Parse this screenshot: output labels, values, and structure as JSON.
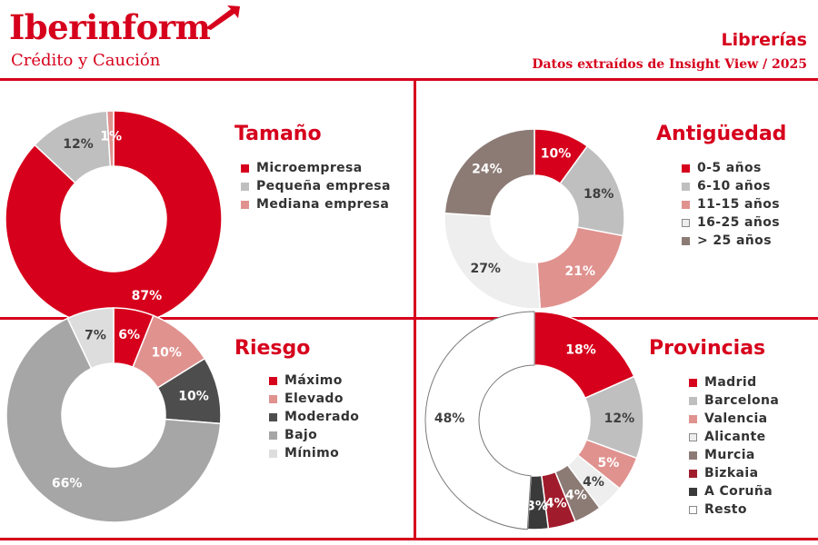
{
  "header": {
    "brand": "Iberinform",
    "brand_sub": "Crédito y Caución",
    "title": "Librerías",
    "subtitle": "Datos extraídos de Insight View / 2025"
  },
  "colors": {
    "brand_red": "#d6001c",
    "rule_red": "#c8102e",
    "label_dark": "#333333"
  },
  "chart_data": [
    {
      "type": "pie",
      "title": "Tamaño",
      "donut": true,
      "legend_position": "right",
      "slices": [
        {
          "label": "Microempresa",
          "value": 87,
          "display": "87%",
          "color": "#d6001c"
        },
        {
          "label": "Pequeña empresa",
          "value": 12,
          "display": "12%",
          "color": "#bfbfbf"
        },
        {
          "label": "Mediana empresa",
          "value": 1,
          "display": "1%",
          "color": "#e0928f"
        }
      ]
    },
    {
      "type": "pie",
      "title": "Antigüedad",
      "donut": true,
      "legend_position": "right",
      "slices": [
        {
          "label": "0-5 años",
          "value": 10,
          "display": "10%",
          "color": "#d6001c"
        },
        {
          "label": "6-10 años",
          "value": 18,
          "display": "18%",
          "color": "#bfbfbf"
        },
        {
          "label": "11-15 años",
          "value": 21,
          "display": "21%",
          "color": "#e0928f"
        },
        {
          "label": "16-25 años",
          "value": 27,
          "display": "27%",
          "color": "#eeeeee"
        },
        {
          "label": "> 25 años",
          "value": 24,
          "display": "24%",
          "color": "#8c7b75"
        }
      ]
    },
    {
      "type": "pie",
      "title": "Riesgo",
      "donut": true,
      "legend_position": "right",
      "slices": [
        {
          "label": "Máximo",
          "value": 6,
          "display": "6%",
          "color": "#d6001c"
        },
        {
          "label": "Elevado",
          "value": 10,
          "display": "10%",
          "color": "#e0928f"
        },
        {
          "label": "Moderado",
          "value": 10,
          "display": "10%",
          "color": "#4d4d4d"
        },
        {
          "label": "Bajo",
          "value": 66,
          "display": "66%",
          "color": "#a6a6a6"
        },
        {
          "label": "Mínimo",
          "value": 7,
          "display": "7%",
          "color": "#dddddd"
        }
      ]
    },
    {
      "type": "pie",
      "title": "Provincias",
      "donut": true,
      "legend_position": "right",
      "slices": [
        {
          "label": "Madrid",
          "value": 18,
          "display": "18%",
          "color": "#d6001c"
        },
        {
          "label": "Barcelona",
          "value": 12,
          "display": "12%",
          "color": "#bfbfbf"
        },
        {
          "label": "Valencia",
          "value": 5,
          "display": "5%",
          "color": "#e0928f"
        },
        {
          "label": "Alicante",
          "value": 4,
          "display": "4%",
          "color": "#eeeeee"
        },
        {
          "label": "Murcia",
          "value": 4,
          "display": "4%",
          "color": "#8c7b75"
        },
        {
          "label": "Bizkaia",
          "value": 4,
          "display": "4%",
          "color": "#a01c2c"
        },
        {
          "label": "A Coruña",
          "value": 3,
          "display": "3%",
          "color": "#3a3a3a"
        },
        {
          "label": "Resto",
          "value": 48,
          "display": "48%",
          "color": "#ffffff"
        }
      ]
    }
  ]
}
